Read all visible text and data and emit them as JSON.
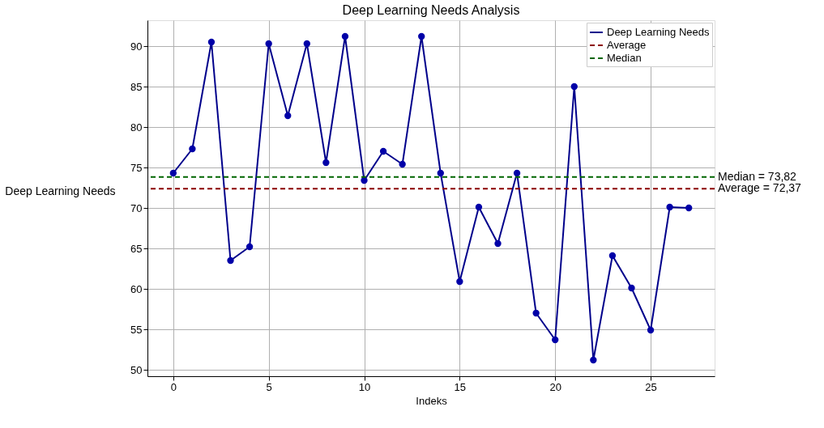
{
  "chart_data": {
    "type": "line",
    "title": "Deep Learning Needs Analysis",
    "xlabel": "Indeks",
    "ylabel": "Deep Learning Needs",
    "x": [
      0,
      1,
      2,
      3,
      4,
      5,
      6,
      7,
      8,
      9,
      10,
      11,
      12,
      13,
      14,
      15,
      16,
      17,
      18,
      19,
      20,
      21,
      22,
      23,
      24,
      25,
      26,
      27
    ],
    "series": [
      {
        "name": "Deep Learning Needs",
        "color": "#00008b",
        "values": [
          74.3,
          77.3,
          90.5,
          63.5,
          65.2,
          90.3,
          81.4,
          90.3,
          75.6,
          91.2,
          73.4,
          77.0,
          75.4,
          91.2,
          74.3,
          60.9,
          70.1,
          65.6,
          74.3,
          57.0,
          53.7,
          85.0,
          51.2,
          64.1,
          60.1,
          54.9,
          70.1,
          70.0
        ]
      }
    ],
    "ref_lines": [
      {
        "axis": "y",
        "value": 72.37,
        "label": "Average",
        "color": "#8b0000",
        "line_style": "dashed"
      },
      {
        "axis": "y",
        "value": 73.82,
        "label": "Median",
        "color": "#006400",
        "line_style": "dashed"
      }
    ],
    "annotations": [
      "Average = 72,37",
      "Median = 73,82"
    ],
    "xlim": [
      -1.35,
      28.35
    ],
    "xticks": [
      0,
      5,
      10,
      15,
      20,
      25
    ],
    "ylim": [
      49.2,
      93.2
    ],
    "yticks": [
      50,
      55,
      60,
      65,
      70,
      75,
      80,
      85,
      90
    ],
    "grid": true,
    "legend": "top right",
    "marker": "circle",
    "line_style": "solid"
  }
}
